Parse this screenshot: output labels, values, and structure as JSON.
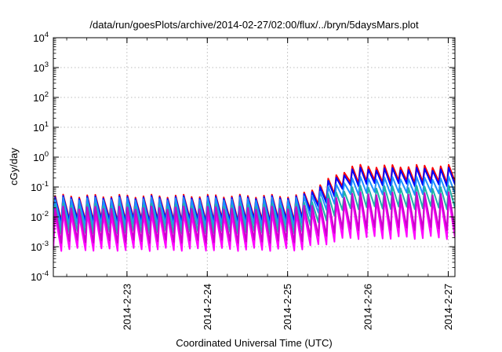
{
  "chart_data": {
    "type": "line",
    "title": "/data/run/goesPlots/archive/2014-02-27/02:00/flux/../bryn/5daysMars.plot",
    "xlabel": "Coordinated Universal Time (UTC)",
    "ylabel": "cGy/day",
    "y_scale": "log",
    "ylim": [
      0.0001,
      10000
    ],
    "xlim": [
      "2014-02-22T02:00",
      "2014-02-27T02:00"
    ],
    "grid": true,
    "x_tick_labels": [
      "2014-2-23",
      "2014-2-24",
      "2014-2-25",
      "2014-2-26",
      "2014-2-27"
    ],
    "y_tick_labels": [
      {
        "base": "10",
        "exp": "-4"
      },
      {
        "base": "10",
        "exp": "-3"
      },
      {
        "base": "10",
        "exp": "-2"
      },
      {
        "base": "10",
        "exp": "-1"
      },
      {
        "base": "10",
        "exp": "0"
      },
      {
        "base": "10",
        "exp": "1"
      },
      {
        "base": "10",
        "exp": "2"
      },
      {
        "base": "10",
        "exp": "3"
      },
      {
        "base": "10",
        "exp": "4"
      }
    ],
    "period_hours": 2.4,
    "series": [
      {
        "color": "#ff0000",
        "peaks_before": 0.05,
        "troughs_before": 0.008,
        "peaks_after": 0.5,
        "troughs_after": 0.15
      },
      {
        "color": "#0000ff",
        "peaks_before": 0.045,
        "troughs_before": 0.007,
        "peaks_after": 0.4,
        "troughs_after": 0.12
      },
      {
        "color": "#1e90ff",
        "peaks_before": 0.04,
        "troughs_before": 0.005,
        "peaks_after": 0.2,
        "troughs_after": 0.06
      },
      {
        "color": "#20b2aa",
        "peaks_before": 0.025,
        "troughs_before": 0.003,
        "peaks_after": 0.1,
        "troughs_after": 0.02
      },
      {
        "color": "#ff00ff",
        "peaks_before": 0.012,
        "troughs_before": 0.0008,
        "peaks_after": 0.04,
        "troughs_after": 0.002
      },
      {
        "color": "#cc00cc",
        "peaks_before": 0.02,
        "troughs_before": 0.0015,
        "peaks_after": 0.06,
        "troughs_after": 0.004
      }
    ]
  }
}
